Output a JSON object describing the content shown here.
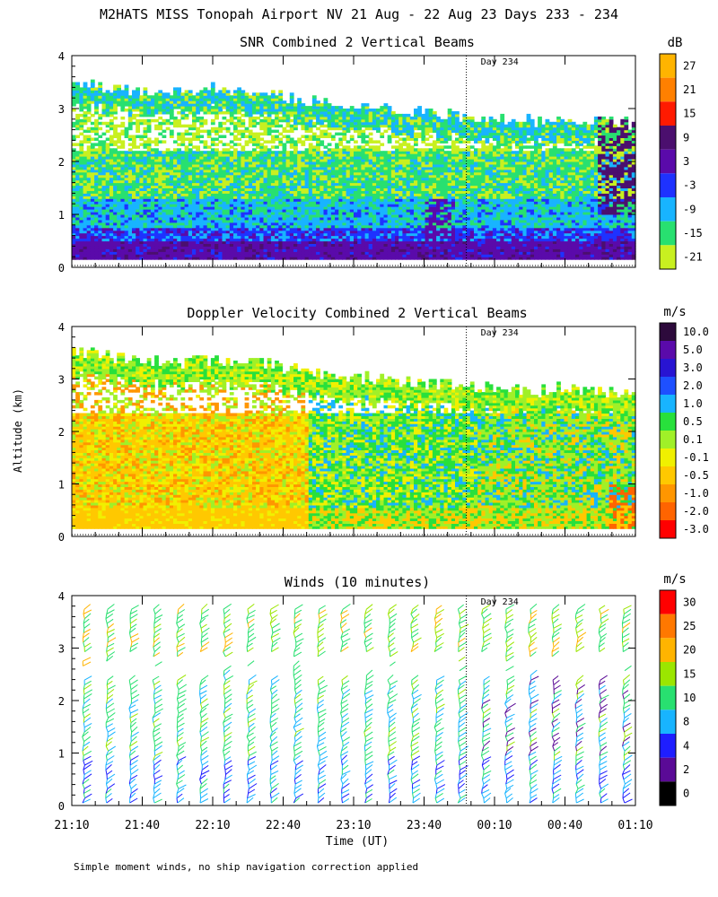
{
  "title": "M2HATS MISS Tonopah Airport NV  21 Aug - 22 Aug 23 Days 233 - 234",
  "y_axis_label": "Altitude (km)",
  "x_axis_label": "Time (UT)",
  "footnote": "Simple moment winds, no ship navigation correction applied",
  "marker_label": "Day 234",
  "chart_data": [
    {
      "type": "heatmap",
      "title": "SNR Combined 2 Vertical Beams",
      "unit": "dB",
      "xlabel": "",
      "ylabel": "Altitude (km)",
      "xlim": [
        "21:10",
        "01:10"
      ],
      "ylim": [
        0,
        4
      ],
      "y_ticks": [
        "0",
        "1",
        "2",
        "3",
        "4"
      ],
      "day_marker_time": "23:58",
      "colorbar": {
        "labels": [
          "27",
          "21",
          "15",
          "9",
          "3",
          "-3",
          "-9",
          "-15",
          "-21"
        ],
        "colors": [
          "#ffb400",
          "#ff8000",
          "#ff1a00",
          "#4b0f6e",
          "#5a0aaa",
          "#1e32ff",
          "#18b4ff",
          "#28e070",
          "#c8f020"
        ]
      },
      "data_top_km": [
        3.5,
        3.4,
        3.3,
        3.3,
        3.35,
        3.3,
        3.2,
        3.1,
        3.0,
        2.95,
        2.9,
        2.85,
        2.8,
        2.75,
        2.8,
        2.75,
        2.7
      ],
      "dominant_values_db": {
        "below_0.5km": 3,
        "0.5_to_1km": -9,
        "1_to_2km": -15,
        "above_2km": -21
      }
    },
    {
      "type": "heatmap",
      "title": "Doppler Velocity Combined 2 Vertical Beams",
      "unit": "m/s",
      "xlabel": "",
      "ylabel": "Altitude (km)",
      "xlim": [
        "21:10",
        "01:10"
      ],
      "ylim": [
        0,
        4
      ],
      "y_ticks": [
        "0",
        "1",
        "2",
        "3",
        "4"
      ],
      "day_marker_time": "23:58",
      "colorbar": {
        "labels": [
          "10.0",
          "5.0",
          "3.0",
          "2.0",
          "1.0",
          "0.5",
          "0.1",
          "-0.1",
          "-0.5",
          "-1.0",
          "-2.0",
          "-3.0"
        ],
        "colors": [
          "#2d0a3c",
          "#5a0aaa",
          "#2814d2",
          "#1e50ff",
          "#18b4ff",
          "#28e03c",
          "#a0f028",
          "#f0f000",
          "#ffc800",
          "#ff9600",
          "#ff6400",
          "#ff0000"
        ]
      },
      "dominant_values_ms": {
        "21:10_to_22:40_low": -0.5,
        "22:40_to_00:10": 0.5,
        "upper_layer": 0.1
      }
    },
    {
      "type": "scatter",
      "title": "Winds (10 minutes)",
      "unit": "m/s",
      "xlabel": "Time (UT)",
      "ylabel": "Altitude (km)",
      "xlim": [
        "21:10",
        "01:10"
      ],
      "ylim": [
        0,
        4
      ],
      "x_ticks": [
        "21:10",
        "21:40",
        "22:10",
        "22:40",
        "23:10",
        "23:40",
        "00:10",
        "00:40",
        "01:10"
      ],
      "y_ticks": [
        "0",
        "1",
        "2",
        "3",
        "4"
      ],
      "day_marker_time": "23:58",
      "colorbar": {
        "labels": [
          "30",
          "25",
          "20",
          "15",
          "10",
          "8",
          "4",
          "2",
          "0"
        ],
        "colors": [
          "#ff0000",
          "#ff7800",
          "#ffb400",
          "#9be600",
          "#28e070",
          "#18b4ff",
          "#1e1eff",
          "#5a0a96",
          "#000000"
        ]
      },
      "profile_times": [
        "21:15",
        "21:25",
        "21:35",
        "21:45",
        "21:55",
        "22:05",
        "22:15",
        "22:25",
        "22:35",
        "22:45",
        "22:55",
        "23:05",
        "23:15",
        "23:25",
        "23:35",
        "23:45",
        "23:55",
        "00:05",
        "00:15",
        "00:25",
        "00:35",
        "00:45",
        "00:55",
        "01:05"
      ],
      "dominant_speed_ms": {
        "below_1km": 8,
        "1_to_3km": 10,
        "near_3.5km": 15
      }
    }
  ]
}
